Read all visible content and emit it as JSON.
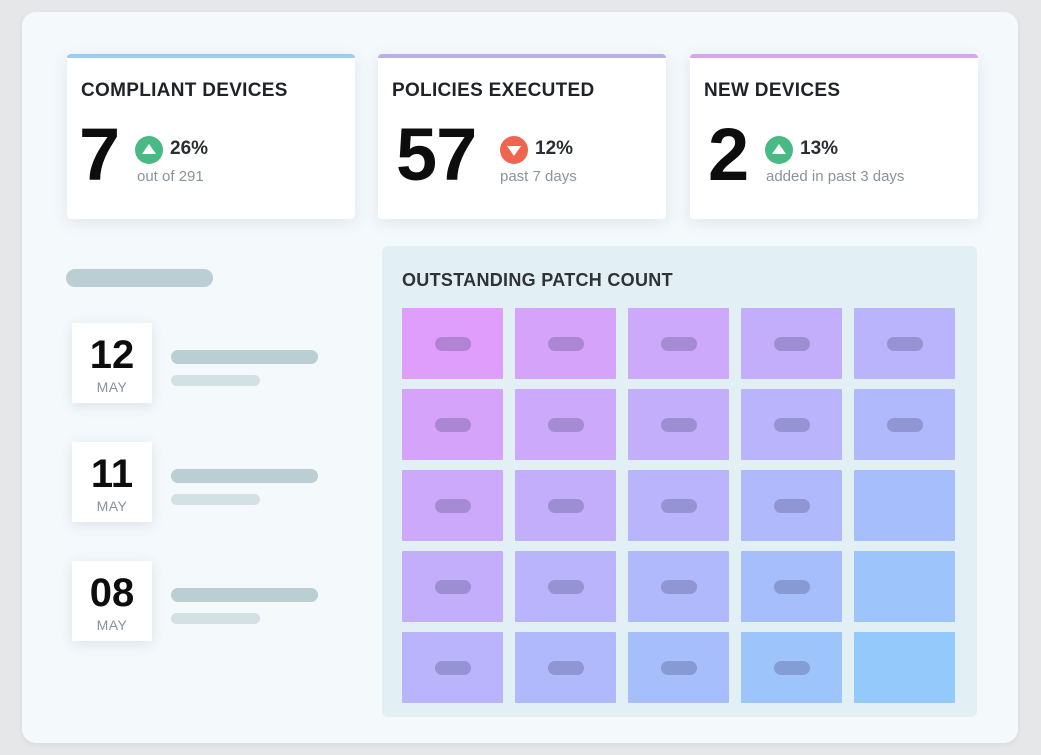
{
  "colors": {
    "card1_accent": "#9ccdf0",
    "card2_accent": "#b9b0ea",
    "card3_accent": "#d5a8ee",
    "up": "#49b985",
    "down": "#f0654f",
    "skeleton_dark": "#b9cfd3",
    "skeleton_light": "#d3e1e4",
    "grid_top_left": "#df9efb",
    "grid_bottom_right": "#93c9fb"
  },
  "stats": [
    {
      "title": "COMPLIANT DEVICES",
      "value": "7",
      "trend": "up",
      "trend_icon": "triangle-up-icon",
      "percent": "26%",
      "sub": "out of 291"
    },
    {
      "title": "POLICIES EXECUTED",
      "value": "57",
      "trend": "down",
      "trend_icon": "triangle-down-icon",
      "percent": "12%",
      "sub": "past 7 days"
    },
    {
      "title": "NEW DEVICES",
      "value": "2",
      "trend": "up",
      "trend_icon": "triangle-up-icon",
      "percent": "13%",
      "sub": "added in past 3 days"
    }
  ],
  "events": [
    {
      "day": "12",
      "month": "MAY"
    },
    {
      "day": "11",
      "month": "MAY"
    },
    {
      "day": "08",
      "month": "MAY"
    }
  ],
  "patch": {
    "title": "OUTSTANDING PATCH COUNT",
    "rows": 5,
    "cols": 5,
    "pills": [
      [
        true,
        true,
        true,
        true,
        true
      ],
      [
        true,
        true,
        true,
        true,
        true
      ],
      [
        true,
        true,
        true,
        true,
        false
      ],
      [
        true,
        true,
        true,
        true,
        false
      ],
      [
        true,
        true,
        true,
        true,
        false
      ]
    ]
  }
}
